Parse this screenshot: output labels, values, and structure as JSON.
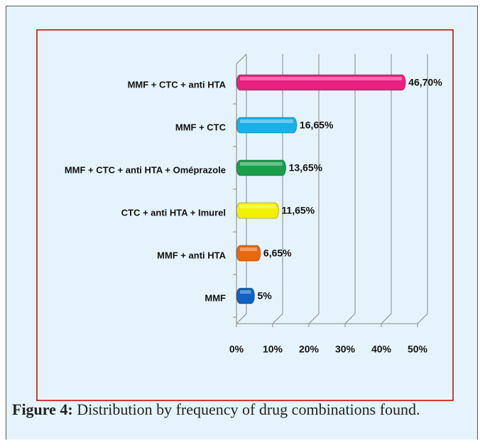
{
  "chart_data": {
    "type": "bar",
    "orientation": "horizontal",
    "categories": [
      "MMF + CTC + anti HTA",
      "MMF + CTC",
      "MMF + CTC + anti HTA + Oméprazole",
      "CTC + anti HTA + Imurel",
      "MMF + anti HTA",
      "MMF"
    ],
    "values": [
      46.7,
      16.65,
      13.65,
      11.65,
      6.65,
      5
    ],
    "value_labels": [
      "46,70%",
      "16,65%",
      "13,65%",
      "11,65%",
      "6,65%",
      "5%"
    ],
    "colors": [
      "#e8207f",
      "#1ab0e8",
      "#1a9e4a",
      "#f2f200",
      "#e8680f",
      "#1062c2"
    ],
    "xlim": [
      0,
      50
    ],
    "xticks": [
      {
        "value": 0,
        "label": "0%"
      },
      {
        "value": 10,
        "label": "10%"
      },
      {
        "value": 20,
        "label": "20%"
      },
      {
        "value": 30,
        "label": "30%"
      },
      {
        "value": 40,
        "label": "40%"
      },
      {
        "value": 50,
        "label": "50%"
      }
    ],
    "grid": true
  },
  "caption": {
    "label": "Figure 4:",
    "text": "Distribution by frequency of drug combinations found."
  }
}
